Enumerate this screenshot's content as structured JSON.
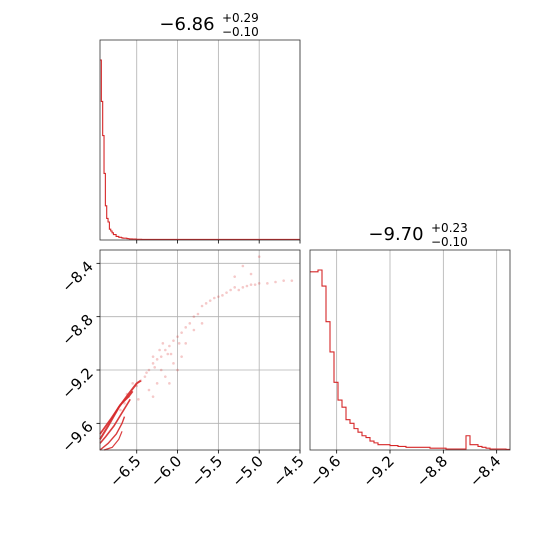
{
  "chart_data": {
    "type": "corner",
    "colors": {
      "series": "#d62728"
    },
    "parameters": [
      {
        "title": {
          "median": "−6.86",
          "plus": "+0.29",
          "minus": "−0.10"
        },
        "range": [
          -6.95,
          -4.5
        ],
        "ticks": [
          -6.5,
          -6.0,
          -5.5,
          -5.0,
          -4.5
        ],
        "tick_labels": [
          "−6.5",
          "−6.0",
          "−5.5",
          "−5.0",
          "−4.5"
        ],
        "hist_counts": [
          100,
          77,
          58,
          37,
          19,
          12,
          10,
          6,
          5,
          4,
          3,
          3,
          2,
          2,
          1.5,
          1.5,
          1.2,
          1,
          1,
          1,
          0.8,
          0.7,
          0.6,
          0.6,
          0.5,
          0.5,
          0.5,
          0.4,
          0.4,
          0.4,
          0.4,
          0.3,
          0.3,
          0.3,
          0.3,
          0.3,
          0.3,
          0.3,
          0.3,
          0.3,
          0.3,
          0.3,
          0.3,
          0.3,
          0.3,
          0.3,
          0.3,
          0.3,
          0.3,
          0.3,
          0.3,
          0.3,
          0.3,
          0.3,
          0.3,
          0.3,
          0.3,
          0.3,
          0.3,
          0.3,
          0.3,
          0.3,
          0.3,
          0.3,
          0.3,
          0.3,
          0.3,
          0.3,
          0.3,
          0.3,
          0.3,
          0.3,
          0.3,
          0.3,
          0.3,
          0.3,
          0.3,
          0.3,
          0.3,
          0.3,
          0.3,
          0.3,
          0.3,
          0.3,
          0.3,
          0.3,
          0.3,
          0.3,
          0.3,
          0.3,
          0.3,
          0.3,
          0.3,
          0.3,
          0.3,
          0.3,
          0.3,
          0.3,
          0.3,
          0.3,
          0.3,
          0.3,
          0.3,
          0.3,
          0.3,
          0.3,
          0.3,
          0.3,
          0.3,
          0.3,
          0.3,
          0.3,
          0.3,
          0.3,
          0.3,
          0.3,
          0.3,
          0.3,
          0.3,
          0.3,
          0.3,
          0.3,
          0.3,
          0.3,
          0.3,
          0.3,
          0.3,
          0.3,
          0.3,
          0.3,
          0.3,
          0.3,
          0.3,
          0.3,
          0.3,
          0.3,
          0.3,
          0.3,
          0.3,
          0.3,
          0.3,
          0.3,
          0.3,
          0.3,
          0.3,
          0.3,
          0.3,
          0.3,
          0.3
        ]
      },
      {
        "title": {
          "median": "−9.70",
          "plus": "+0.23",
          "minus": "−0.10"
        },
        "range": [
          -9.8,
          -8.3
        ],
        "ticks": [
          -9.6,
          -9.2,
          -8.8,
          -8.4
        ],
        "tick_labels": [
          "−9.6",
          "−9.2",
          "−8.8",
          "−8.4"
        ],
        "hist_counts": [
          100,
          100,
          101,
          92,
          72,
          55,
          38,
          28,
          24,
          17,
          15,
          12,
          10,
          8,
          7,
          5,
          4,
          3,
          3,
          3,
          2.5,
          2.5,
          2,
          2,
          1.5,
          1.5,
          1.5,
          1.5,
          1.5,
          1.5,
          1,
          1,
          1,
          1,
          0.5,
          0.5,
          0.5,
          0.5,
          0.5,
          8,
          3,
          3,
          2,
          1.5,
          1,
          0.5,
          0.5,
          0.5,
          0.5,
          0.3
        ]
      }
    ],
    "grid": true,
    "scatter_2d": {
      "x_param": 0,
      "y_param": 1,
      "points": [
        [
          -6.55,
          -9.3
        ],
        [
          -6.5,
          -9.32
        ],
        [
          -6.45,
          -9.28
        ],
        [
          -6.4,
          -9.25
        ],
        [
          -6.38,
          -9.22
        ],
        [
          -6.35,
          -9.2
        ],
        [
          -6.3,
          -9.15
        ],
        [
          -6.28,
          -9.18
        ],
        [
          -6.25,
          -9.12
        ],
        [
          -6.2,
          -9.1
        ],
        [
          -6.15,
          -9.05
        ],
        [
          -6.12,
          -9.08
        ],
        [
          -6.1,
          -9.02
        ],
        [
          -6.05,
          -8.98
        ],
        [
          -6.0,
          -8.95
        ],
        [
          -5.98,
          -9.0
        ],
        [
          -5.95,
          -8.92
        ],
        [
          -5.9,
          -8.88
        ],
        [
          -5.85,
          -8.85
        ],
        [
          -5.8,
          -8.8
        ],
        [
          -5.75,
          -8.78
        ],
        [
          -5.7,
          -8.72
        ],
        [
          -5.65,
          -8.7
        ],
        [
          -5.6,
          -8.68
        ],
        [
          -5.55,
          -8.66
        ],
        [
          -5.5,
          -8.65
        ],
        [
          -5.45,
          -8.64
        ],
        [
          -5.4,
          -8.62
        ],
        [
          -5.35,
          -8.6
        ],
        [
          -5.3,
          -8.58
        ],
        [
          -5.25,
          -8.6
        ],
        [
          -5.2,
          -8.58
        ],
        [
          -5.15,
          -8.57
        ],
        [
          -5.1,
          -8.56
        ],
        [
          -5.05,
          -8.56
        ],
        [
          -5.0,
          -8.55
        ],
        [
          -4.9,
          -8.55
        ],
        [
          -4.8,
          -8.54
        ],
        [
          -4.7,
          -8.53
        ],
        [
          -4.6,
          -8.53
        ],
        [
          -5.0,
          -8.35
        ],
        [
          -5.2,
          -8.42
        ],
        [
          -5.1,
          -8.48
        ],
        [
          -5.3,
          -8.5
        ],
        [
          -6.6,
          -9.4
        ],
        [
          -6.65,
          -9.45
        ],
        [
          -6.7,
          -9.5
        ],
        [
          -6.62,
          -9.38
        ],
        [
          -6.48,
          -9.42
        ],
        [
          -6.35,
          -9.35
        ],
        [
          -6.25,
          -9.3
        ],
        [
          -6.2,
          -9.2
        ],
        [
          -6.1,
          -9.3
        ],
        [
          -6.15,
          -9.25
        ],
        [
          -6.3,
          -9.4
        ],
        [
          -6.05,
          -9.15
        ],
        [
          -5.95,
          -9.1
        ],
        [
          -5.9,
          -9.0
        ],
        [
          -5.8,
          -8.9
        ],
        [
          -5.7,
          -8.85
        ],
        [
          -6.0,
          -9.2
        ],
        [
          -6.08,
          -9.08
        ],
        [
          -6.18,
          -9.0
        ],
        [
          -6.22,
          -9.05
        ],
        [
          -6.3,
          -9.1
        ]
      ],
      "contours": [
        [
          [
            -6.95,
            -9.72
          ],
          [
            -6.85,
            -9.62
          ],
          [
            -6.72,
            -9.48
          ],
          [
            -6.6,
            -9.38
          ],
          [
            -6.5,
            -9.3
          ],
          [
            -6.45,
            -9.28
          ]
        ],
        [
          [
            -6.95,
            -9.68
          ],
          [
            -6.82,
            -9.57
          ],
          [
            -6.7,
            -9.46
          ],
          [
            -6.6,
            -9.4
          ],
          [
            -6.55,
            -9.36
          ]
        ],
        [
          [
            -6.95,
            -9.75
          ],
          [
            -6.88,
            -9.7
          ],
          [
            -6.78,
            -9.62
          ],
          [
            -6.68,
            -9.52
          ],
          [
            -6.62,
            -9.46
          ],
          [
            -6.58,
            -9.42
          ]
        ],
        [
          [
            -6.95,
            -9.8
          ],
          [
            -6.85,
            -9.75
          ],
          [
            -6.75,
            -9.68
          ],
          [
            -6.68,
            -9.6
          ],
          [
            -6.65,
            -9.55
          ]
        ],
        [
          [
            -6.9,
            -9.8
          ],
          [
            -6.8,
            -9.78
          ],
          [
            -6.72,
            -9.72
          ],
          [
            -6.68,
            -9.66
          ]
        ]
      ]
    }
  }
}
